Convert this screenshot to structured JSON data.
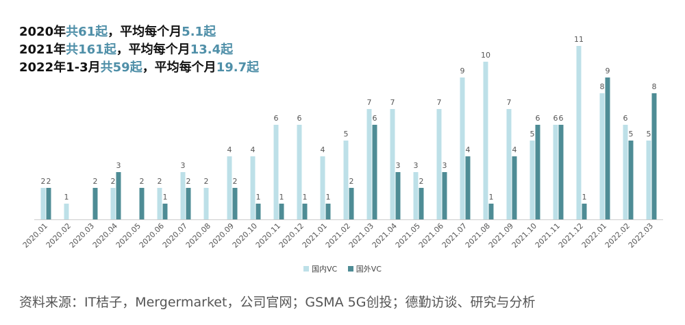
{
  "summary": [
    {
      "year": "2020年",
      "pre": "共",
      "count": "61",
      "unit": "起",
      "mid": "，平均每个月",
      "avg": "5.1",
      "tail": "起"
    },
    {
      "year": "2021年",
      "pre": "共",
      "count": "161",
      "unit": "起",
      "mid": "，平均每个月",
      "avg": "13.4",
      "tail": "起"
    },
    {
      "year": "2022年1-3月",
      "pre": "共",
      "count": "59",
      "unit": "起",
      "mid": "，平均每个月",
      "avg": "19.7",
      "tail": "起"
    }
  ],
  "source": "资料来源：IT桔子，Mergermarket，公司官网；GSMA 5G创投；德勤访谈、研究与分析",
  "colors": {
    "domestic": "#bde0e8",
    "foreign": "#4e8c95",
    "highlight": "#4f8fa8"
  },
  "chart_data": {
    "type": "bar",
    "categories": [
      "2020.01",
      "2020.02",
      "2020.03",
      "2020.04",
      "2020.05",
      "2020.06",
      "2020.07",
      "2020.08",
      "2020.09",
      "2020.10",
      "2020.11",
      "2020.12",
      "2021.01",
      "2021.02",
      "2021.03",
      "2021.04",
      "2021.05",
      "2021.06",
      "2021.07",
      "2021.08",
      "2021.09",
      "2021.10",
      "2021.11",
      "2021.12",
      "2022.01",
      "2022.02",
      "2022.03"
    ],
    "series": [
      {
        "name": "国内VC",
        "values": [
          2,
          1,
          0,
          2,
          0,
          2,
          3,
          2,
          4,
          4,
          6,
          6,
          4,
          5,
          7,
          7,
          3,
          7,
          9,
          10,
          7,
          5,
          6,
          11,
          8,
          6,
          5
        ]
      },
      {
        "name": "国外VC",
        "values": [
          2,
          0,
          2,
          3,
          2,
          1,
          2,
          0,
          2,
          1,
          1,
          1,
          1,
          2,
          6,
          3,
          2,
          3,
          4,
          1,
          4,
          6,
          6,
          1,
          9,
          5,
          8
        ]
      }
    ],
    "ylim": [
      0,
      11
    ],
    "legend": "bottom-center",
    "grid": false
  }
}
